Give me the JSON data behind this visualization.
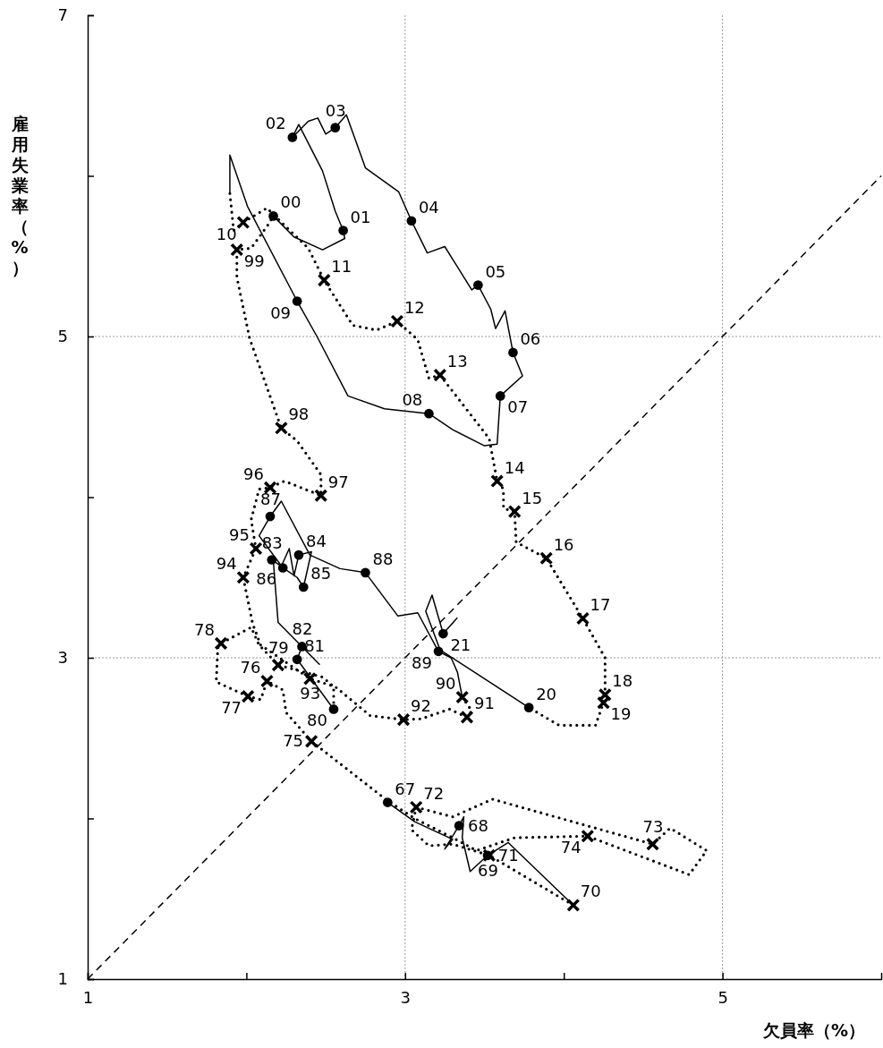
{
  "chart_data": {
    "type": "line",
    "xlabel": "欠員率（%）",
    "ylabel": "雇用失業率（%）",
    "xlim": [
      1,
      6
    ],
    "xticks": [
      1,
      {
        "value": 2,
        "label": null
      },
      3,
      {
        "value": 4,
        "label": null
      },
      5
    ],
    "ylim": [
      1,
      7
    ],
    "yticks": [
      1,
      {
        "value": 2,
        "label": null
      },
      3,
      {
        "value": 4,
        "label": null
      },
      5,
      {
        "value": 6,
        "label": null
      },
      7
    ],
    "grid": true,
    "series": [
      {
        "type": "line",
        "color": "#000000",
        "line_style": "dashed",
        "marker": "none",
        "x": [
          1,
          6
        ],
        "values": [
          1,
          6
        ]
      },
      {
        "type": "line",
        "color": "#000000",
        "line_style": "solid",
        "marker": "none",
        "x": [
          2.89,
          3.06,
          3.3,
          3.25,
          3.34,
          3.37,
          3.36,
          3.41,
          3.52,
          3.65,
          4.06
        ],
        "values": [
          2.1,
          1.98,
          1.87,
          1.81,
          1.955,
          2.01,
          1.88,
          1.67,
          1.77,
          1.85,
          1.46
        ]
      },
      {
        "type": "line",
        "color": "#000000",
        "line_style": "dotted",
        "marker": "none",
        "x": [
          4.06,
          3.53,
          3.3,
          3.15,
          3.04,
          3.07,
          3.3,
          3.55,
          4.56,
          4.67,
          4.9,
          4.79,
          4.15,
          3.69,
          3.45,
          3.3,
          3.06,
          2.89,
          2.41,
          2.25,
          2.23,
          2.13,
          2.09,
          2.01,
          1.81,
          1.82,
          1.84,
          2.03,
          2.08,
          2.2,
          2.48,
          2.55,
          2.55
        ],
        "values": [
          1.46,
          1.77,
          1.84,
          1.83,
          1.93,
          2.07,
          2.01,
          2.12,
          1.84,
          1.94,
          1.8,
          1.65,
          1.89,
          1.88,
          1.8,
          1.88,
          2.0,
          2.11,
          2.48,
          2.66,
          2.8,
          2.855,
          2.74,
          2.76,
          2.85,
          3.06,
          3.09,
          3.19,
          3.08,
          2.955,
          2.88,
          2.82,
          2.68
        ]
      },
      {
        "type": "line",
        "color": "#000000",
        "line_style": "solid",
        "marker": "none",
        "x": [
          2.55,
          2.32,
          2.35,
          2.46,
          2.2,
          2.17,
          2.16,
          2.22,
          2.27,
          2.3,
          2.33,
          2.41,
          2.36,
          2.32,
          2.23,
          2.08,
          2.15,
          2.22,
          2.4,
          2.59,
          2.75,
          2.955,
          3.08,
          3.21,
          3.29,
          3.33,
          3.36
        ],
        "values": [
          2.68,
          2.99,
          3.07,
          2.96,
          3.22,
          3.6,
          3.61,
          3.57,
          3.68,
          3.51,
          3.64,
          3.66,
          3.44,
          3.5,
          3.56,
          3.76,
          3.88,
          3.975,
          3.64,
          3.555,
          3.53,
          3.26,
          3.28,
          3.04,
          3.0,
          2.91,
          2.755
        ]
      },
      {
        "type": "line",
        "color": "#000000",
        "line_style": "dotted",
        "marker": "none",
        "x": [
          3.36,
          3.42,
          3.39,
          3.28,
          3.1,
          2.99,
          2.78,
          2.56,
          2.4,
          2.09,
          2.04,
          1.98,
          2.06,
          2.03,
          2.08,
          2.15,
          2.24,
          2.47,
          2.47,
          2.32,
          2.22,
          2.02,
          1.94,
          1.94,
          2.03,
          2.14,
          2.17
        ],
        "values": [
          2.755,
          2.67,
          2.63,
          2.68,
          2.62,
          2.615,
          2.64,
          2.82,
          2.87,
          3.08,
          3.21,
          3.5,
          3.68,
          3.86,
          4.05,
          4.06,
          4.1,
          4.01,
          4.14,
          4.35,
          4.43,
          4.99,
          5.37,
          5.54,
          5.55,
          5.7,
          5.75
        ]
      },
      {
        "type": "line",
        "color": "#000000",
        "line_style": "solid",
        "marker": "none",
        "x": [
          2.17,
          2.3,
          2.48,
          2.62,
          2.61,
          2.56,
          2.48,
          2.33,
          2.29,
          2.39,
          2.45,
          2.5,
          2.56,
          2.63,
          2.75,
          2.96,
          3.04,
          3.14,
          3.25,
          3.42,
          3.46,
          3.54,
          3.57,
          3.63,
          3.68,
          3.74,
          3.6,
          3.58,
          3.5,
          3.3,
          3.15,
          2.87,
          2.64,
          2.445,
          2.32,
          2.007,
          1.896,
          1.896
        ],
        "values": [
          5.75,
          5.62,
          5.54,
          5.61,
          5.66,
          5.78,
          6.03,
          6.32,
          6.24,
          6.34,
          6.36,
          6.26,
          6.3,
          6.38,
          6.05,
          5.9,
          5.72,
          5.52,
          5.56,
          5.29,
          5.32,
          5.17,
          5.05,
          5.16,
          4.9,
          4.755,
          4.63,
          4.33,
          4.32,
          4.42,
          4.52,
          4.55,
          4.63,
          5.0,
          5.22,
          5.81,
          6.13,
          5.89
        ]
      },
      {
        "type": "line",
        "color": "#000000",
        "line_style": "dotted",
        "marker": "none",
        "x": [
          1.896,
          1.92,
          1.98,
          2.13,
          2.18,
          2.39,
          2.49,
          2.67,
          2.82,
          2.95,
          3.08,
          3.15,
          3.22,
          3.53,
          3.58,
          3.62,
          3.62,
          3.69,
          3.7,
          3.89,
          4.12,
          4.26,
          4.26,
          4.25,
          4.2,
          3.97,
          3.78
        ],
        "values": [
          5.89,
          5.66,
          5.71,
          5.8,
          5.75,
          5.55,
          5.35,
          5.07,
          5.04,
          5.095,
          4.98,
          4.74,
          4.76,
          4.365,
          4.1,
          4.05,
          3.93,
          3.91,
          3.72,
          3.62,
          3.245,
          3.0,
          2.77,
          2.72,
          2.58,
          2.58,
          2.69
        ]
      },
      {
        "type": "line",
        "color": "#000000",
        "line_style": "solid",
        "marker": "none",
        "x": [
          3.78,
          3.22,
          3.13,
          3.17,
          3.24,
          3.33
        ],
        "values": [
          2.69,
          3.05,
          3.29,
          3.39,
          3.15,
          3.25
        ]
      },
      {
        "type": "scatter",
        "color": "#000000",
        "marker": "circle",
        "x": [
          2.89,
          3.34,
          3.52,
          2.55,
          2.32,
          2.35,
          2.16,
          2.33,
          2.36,
          2.23,
          2.15,
          2.75,
          3.21,
          2.17,
          2.61,
          2.29,
          2.56,
          3.04,
          3.46,
          3.68,
          3.6,
          3.15,
          2.32,
          3.78,
          3.24
        ],
        "values": [
          2.1,
          1.955,
          1.77,
          2.68,
          2.99,
          3.07,
          3.61,
          3.64,
          3.44,
          3.56,
          3.88,
          3.53,
          3.04,
          5.75,
          5.66,
          6.24,
          6.3,
          5.72,
          5.32,
          4.9,
          4.63,
          4.52,
          5.22,
          2.69,
          3.15
        ]
      },
      {
        "type": "scatter",
        "color": "#000000",
        "marker": "cross",
        "x": [
          4.06,
          3.53,
          3.07,
          4.56,
          4.15,
          2.41,
          2.13,
          2.01,
          1.84,
          2.2,
          3.36,
          3.39,
          2.99,
          2.4,
          1.98,
          2.06,
          2.15,
          2.47,
          2.22,
          1.94,
          1.98,
          2.49,
          2.95,
          3.22,
          3.58,
          3.69,
          3.89,
          4.12,
          4.26,
          4.25
        ],
        "values": [
          1.46,
          1.77,
          2.07,
          1.84,
          1.89,
          2.48,
          2.855,
          2.76,
          3.09,
          2.955,
          2.755,
          2.63,
          2.615,
          2.87,
          3.5,
          3.68,
          4.06,
          4.01,
          4.43,
          5.54,
          5.71,
          5.35,
          5.095,
          4.76,
          4.1,
          3.91,
          3.62,
          3.245,
          2.77,
          2.72
        ]
      }
    ],
    "annotations": [
      {
        "text": "67",
        "x": 2.89,
        "y": 2.1
      },
      {
        "text": "68",
        "x": 3.34,
        "y": 1.955
      },
      {
        "text": "69",
        "x": 3.52,
        "y": 1.77
      },
      {
        "text": "70",
        "x": 4.06,
        "y": 1.46
      },
      {
        "text": "71",
        "x": 3.53,
        "y": 1.77
      },
      {
        "text": "72",
        "x": 3.07,
        "y": 2.07
      },
      {
        "text": "73",
        "x": 4.56,
        "y": 1.84
      },
      {
        "text": "74",
        "x": 4.15,
        "y": 1.89
      },
      {
        "text": "75",
        "x": 2.41,
        "y": 2.48
      },
      {
        "text": "76",
        "x": 2.13,
        "y": 2.855
      },
      {
        "text": "77",
        "x": 2.01,
        "y": 2.76
      },
      {
        "text": "78",
        "x": 1.84,
        "y": 3.09
      },
      {
        "text": "79",
        "x": 2.2,
        "y": 2.955
      },
      {
        "text": "80",
        "x": 2.55,
        "y": 2.68
      },
      {
        "text": "81",
        "x": 2.32,
        "y": 2.99
      },
      {
        "text": "82",
        "x": 2.35,
        "y": 3.07
      },
      {
        "text": "83",
        "x": 2.16,
        "y": 3.61
      },
      {
        "text": "84",
        "x": 2.33,
        "y": 3.64
      },
      {
        "text": "85",
        "x": 2.36,
        "y": 3.44
      },
      {
        "text": "86",
        "x": 2.23,
        "y": 3.56
      },
      {
        "text": "87",
        "x": 2.15,
        "y": 3.88
      },
      {
        "text": "88",
        "x": 2.75,
        "y": 3.53
      },
      {
        "text": "89",
        "x": 3.21,
        "y": 3.04
      },
      {
        "text": "90",
        "x": 3.36,
        "y": 2.755
      },
      {
        "text": "91",
        "x": 3.39,
        "y": 2.63
      },
      {
        "text": "92",
        "x": 2.99,
        "y": 2.615
      },
      {
        "text": "93",
        "x": 2.4,
        "y": 2.87
      },
      {
        "text": "94",
        "x": 1.98,
        "y": 3.5
      },
      {
        "text": "95",
        "x": 2.06,
        "y": 3.68
      },
      {
        "text": "96",
        "x": 2.15,
        "y": 4.06
      },
      {
        "text": "97",
        "x": 2.47,
        "y": 4.01
      },
      {
        "text": "98",
        "x": 2.22,
        "y": 4.43
      },
      {
        "text": "99",
        "x": 1.94,
        "y": 5.54
      },
      {
        "text": "00",
        "x": 2.17,
        "y": 5.75
      },
      {
        "text": "01",
        "x": 2.61,
        "y": 5.66
      },
      {
        "text": "02",
        "x": 2.29,
        "y": 6.24
      },
      {
        "text": "03",
        "x": 2.56,
        "y": 6.3
      },
      {
        "text": "04",
        "x": 3.04,
        "y": 5.72
      },
      {
        "text": "05",
        "x": 3.46,
        "y": 5.32
      },
      {
        "text": "06",
        "x": 3.68,
        "y": 4.9
      },
      {
        "text": "07",
        "x": 3.6,
        "y": 4.63
      },
      {
        "text": "08",
        "x": 3.15,
        "y": 4.52
      },
      {
        "text": "09",
        "x": 2.32,
        "y": 5.22
      },
      {
        "text": "10",
        "x": 1.98,
        "y": 5.71
      },
      {
        "text": "11",
        "x": 2.49,
        "y": 5.35
      },
      {
        "text": "12",
        "x": 2.95,
        "y": 5.095
      },
      {
        "text": "13",
        "x": 3.22,
        "y": 4.76
      },
      {
        "text": "14",
        "x": 3.58,
        "y": 4.1
      },
      {
        "text": "15",
        "x": 3.69,
        "y": 3.91
      },
      {
        "text": "16",
        "x": 3.89,
        "y": 3.62
      },
      {
        "text": "17",
        "x": 4.12,
        "y": 3.245
      },
      {
        "text": "18",
        "x": 4.26,
        "y": 2.77
      },
      {
        "text": "19",
        "x": 4.25,
        "y": 2.72
      },
      {
        "text": "20",
        "x": 3.78,
        "y": 2.69
      },
      {
        "text": "21",
        "x": 3.24,
        "y": 3.15
      }
    ]
  }
}
